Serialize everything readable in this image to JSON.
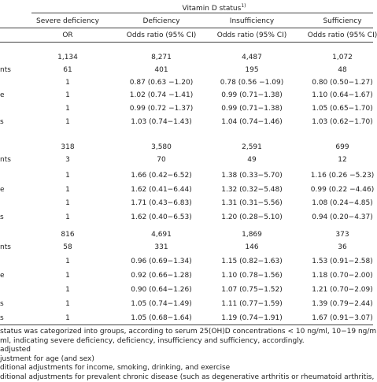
{
  "header": {
    "title": "Vitamin D status",
    "title_note": "1)",
    "columns": [
      "Severe deficiency",
      "Deficiency",
      "Insufficiency",
      "Sufficiency"
    ],
    "subcolumns": [
      "OR",
      "Odds ratio (95% CI)",
      "Odds ratio (95% CI)",
      "Odds ratio (95% CI)"
    ]
  },
  "table": {
    "sections": [
      {
        "rows": [
          {
            "cells": [
              "1,134",
              "8,271",
              "4,487",
              "1,072"
            ]
          },
          {
            "label": "nts",
            "cells": [
              "61",
              "401",
              "195",
              "48"
            ]
          },
          {
            "cells": [
              "1",
              "0.87 (0.63 −1.20)",
              "0.78 (0.56 −1.09)",
              "0.80 (0.50−1.27)"
            ]
          },
          {
            "label": "e",
            "cells": [
              "1",
              "1.02 (0.74 −1.41)",
              "0.99 (0.71−1.38)",
              "1.10 (0.64−1.67)"
            ]
          },
          {
            "cells": [
              "1",
              "0.99 (0.72 −1.37)",
              "0.99 (0.71−1.38)",
              "1.05 (0.65−1.70)"
            ]
          },
          {
            "label": "s",
            "cells": [
              "1",
              "1.03 (0.74−1.43)",
              "1.04 (0.74−1.46)",
              "1.03 (0.62−1.70)"
            ]
          }
        ]
      },
      {
        "rows": [
          {
            "cells": [
              "318",
              "3,580",
              "2,591",
              "699"
            ]
          },
          {
            "label": "nts",
            "cells": [
              "3",
              "70",
              "49",
              "12"
            ]
          },
          {
            "cells": [
              "1",
              "1.66 (0.42−6.52)",
              "1.38 (0.33−5.70)",
              "1.16 (0.26 −5.23)"
            ]
          },
          {
            "label": "e",
            "cells": [
              "1",
              "1.62 (0.41−6.44)",
              "1.32 (0.32−5.48)",
              "0.99 (0.22 −4.46)"
            ]
          },
          {
            "cells": [
              "1",
              "1.71 (0.43−6.83)",
              "1.31 (0.31−5.56)",
              "1.08 (0.24−4.85)"
            ]
          },
          {
            "label": "s",
            "cells": [
              "1",
              "1.62 (0.40−6.53)",
              "1.20 (0.28−5.10)",
              "0.94 (0.20−4.37)"
            ]
          }
        ]
      },
      {
        "rows": [
          {
            "cells": [
              "816",
              "4,691",
              "1,869",
              "373"
            ]
          },
          {
            "label": "nts",
            "cells": [
              "58",
              "331",
              "146",
              "36"
            ]
          },
          {
            "cells": [
              "1",
              "0.96 (0.69−1.34)",
              "1.15 (0.82−1.63)",
              "1.53 (0.91−2.58)"
            ]
          },
          {
            "label": "e",
            "cells": [
              "1",
              "0.92 (0.66−1.28)",
              "1.10 (0.78−1.56)",
              "1.18 (0.70−2.00)"
            ]
          },
          {
            "cells": [
              "1",
              "0.90 (0.64−1.26)",
              "1.07 (0.75−1.52)",
              "1.21 (0.70−2.09)"
            ]
          },
          {
            "label": "s",
            "cells": [
              "1",
              "1.05 (0.74−1.49)",
              "1.11 (0.77−1.59)",
              "1.39 (0.79−2.44)"
            ]
          },
          {
            "label": "s",
            "cells": [
              "1",
              "1.05 (0.68−1.64)",
              "1.19 (0.74−1.91)",
              "1.67 (0.91−3.07)"
            ]
          }
        ]
      }
    ]
  },
  "footnotes": [
    "status was categorized into groups, according to serum 25(OH)D concentrations < 10 ng/ml, 10−19 ng/m",
    "ml, indicating severe deficiency, deficiency, insufficiency and sufficiency, accordingly.",
    "adjusted",
    "justment for age (and sex)",
    "ditional adjustments for income, smoking, drinking, and exercise",
    "ditional adjustments for prevalent chronic disease (such as degenerative arthritis or rheumatoid arthritis,"
  ]
}
